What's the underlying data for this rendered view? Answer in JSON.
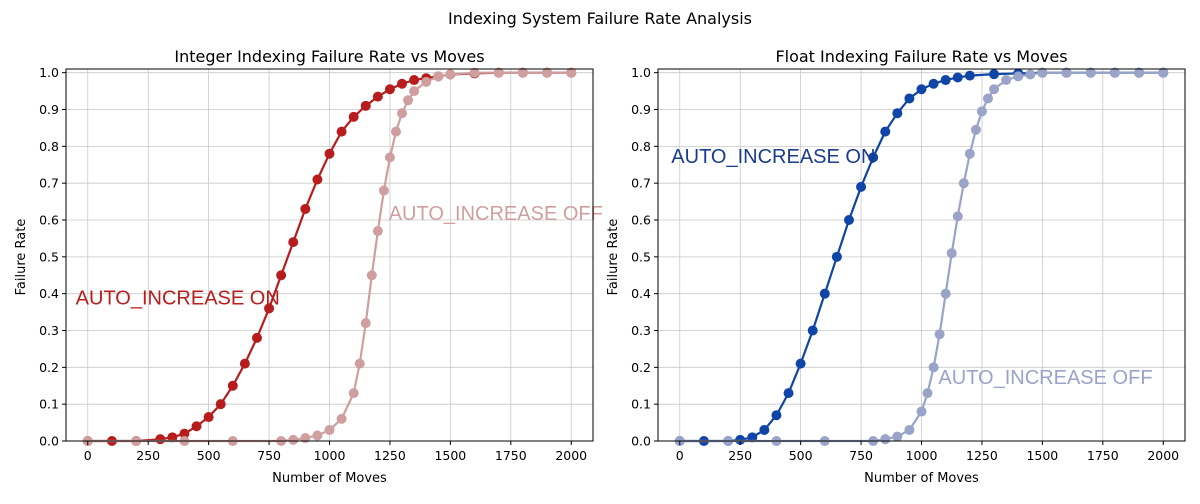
{
  "figure": {
    "suptitle": "Indexing System Failure Rate Analysis"
  },
  "chart_data": [
    {
      "type": "line",
      "title": "Integer Indexing Failure Rate vs Moves",
      "xlabel": "Number of Moves",
      "ylabel": "Failure Rate",
      "xlim": [
        -90,
        2090
      ],
      "ylim": [
        0,
        1.01
      ],
      "xticks": [
        0,
        250,
        500,
        750,
        1000,
        1250,
        1500,
        1750,
        2000
      ],
      "yticks": [
        0.0,
        0.1,
        0.2,
        0.3,
        0.4,
        0.5,
        0.6,
        0.7,
        0.8,
        0.9,
        1.0
      ],
      "grid": true,
      "markers": true,
      "series": [
        {
          "color": "#b81d1d",
          "x": [
            0,
            100,
            200,
            300,
            350,
            400,
            450,
            500,
            550,
            600,
            650,
            700,
            750,
            800,
            850,
            900,
            950,
            1000,
            1050,
            1100,
            1150,
            1200,
            1250,
            1300,
            1350,
            1400,
            1450,
            1500,
            1600,
            1700,
            1800,
            1900,
            2000
          ],
          "y": [
            0.0,
            0.0,
            0.0,
            0.005,
            0.01,
            0.02,
            0.04,
            0.065,
            0.1,
            0.15,
            0.21,
            0.28,
            0.36,
            0.45,
            0.54,
            0.63,
            0.71,
            0.78,
            0.84,
            0.88,
            0.91,
            0.935,
            0.955,
            0.97,
            0.98,
            0.985,
            0.99,
            0.995,
            0.998,
            1.0,
            1.0,
            1.0,
            1.0
          ]
        },
        {
          "color": "#cf9f9f",
          "x": [
            0,
            200,
            400,
            600,
            800,
            850,
            900,
            950,
            1000,
            1050,
            1100,
            1125,
            1150,
            1175,
            1200,
            1225,
            1250,
            1275,
            1300,
            1325,
            1350,
            1400,
            1450,
            1500,
            1600,
            1700,
            1800,
            1900,
            2000
          ],
          "y": [
            0.0,
            0.0,
            0.0,
            0.0,
            0.0,
            0.003,
            0.008,
            0.015,
            0.03,
            0.06,
            0.13,
            0.21,
            0.32,
            0.45,
            0.57,
            0.68,
            0.77,
            0.84,
            0.89,
            0.925,
            0.95,
            0.975,
            0.99,
            0.995,
            1.0,
            1.0,
            1.0,
            1.0,
            1.0
          ]
        }
      ],
      "annotations": [
        {
          "text": "AUTO_INCREASE ON",
          "x": -50,
          "y": 0.37,
          "color": "#b81d1d"
        },
        {
          "text": "AUTO_INCREASE OFF",
          "x": 1245,
          "y": 0.6,
          "color": "#cf9f9f"
        }
      ]
    },
    {
      "type": "line",
      "title": "Float Indexing Failure Rate vs Moves",
      "xlabel": "Number of Moves",
      "ylabel": "Failure Rate",
      "xlim": [
        -90,
        2090
      ],
      "ylim": [
        0,
        1.01
      ],
      "xticks": [
        0,
        250,
        500,
        750,
        1000,
        1250,
        1500,
        1750,
        2000
      ],
      "yticks": [
        0.0,
        0.1,
        0.2,
        0.3,
        0.4,
        0.5,
        0.6,
        0.7,
        0.8,
        0.9,
        1.0
      ],
      "grid": true,
      "markers": true,
      "series": [
        {
          "color": "#0f45a6",
          "x": [
            0,
            100,
            200,
            250,
            300,
            350,
            400,
            450,
            500,
            550,
            600,
            650,
            700,
            750,
            800,
            850,
            900,
            950,
            1000,
            1050,
            1100,
            1150,
            1200,
            1300,
            1400,
            1500,
            1600,
            1700,
            1800,
            1900,
            2000
          ],
          "y": [
            0.0,
            0.0,
            0.0,
            0.003,
            0.01,
            0.03,
            0.07,
            0.13,
            0.21,
            0.3,
            0.4,
            0.5,
            0.6,
            0.69,
            0.77,
            0.84,
            0.89,
            0.93,
            0.955,
            0.97,
            0.98,
            0.987,
            0.992,
            0.996,
            0.998,
            1.0,
            1.0,
            1.0,
            1.0,
            1.0,
            1.0
          ]
        },
        {
          "color": "#9aa3c8",
          "x": [
            0,
            200,
            400,
            600,
            800,
            850,
            900,
            950,
            1000,
            1025,
            1050,
            1075,
            1100,
            1125,
            1150,
            1175,
            1200,
            1225,
            1250,
            1275,
            1300,
            1350,
            1400,
            1450,
            1500,
            1600,
            1700,
            1800,
            1900,
            2000
          ],
          "y": [
            0.0,
            0.0,
            0.0,
            0.0,
            0.0,
            0.005,
            0.012,
            0.03,
            0.08,
            0.13,
            0.2,
            0.29,
            0.4,
            0.51,
            0.61,
            0.7,
            0.78,
            0.845,
            0.895,
            0.93,
            0.955,
            0.98,
            0.99,
            0.995,
            1.0,
            1.0,
            1.0,
            1.0,
            1.0,
            1.0
          ]
        }
      ],
      "annotations": [
        {
          "text": "AUTO_INCREASE ON",
          "x": -35,
          "y": 0.755,
          "color": "#1a3c8c"
        },
        {
          "text": "AUTO_INCREASE OFF",
          "x": 1070,
          "y": 0.155,
          "color": "#9aa3c8"
        }
      ]
    }
  ]
}
